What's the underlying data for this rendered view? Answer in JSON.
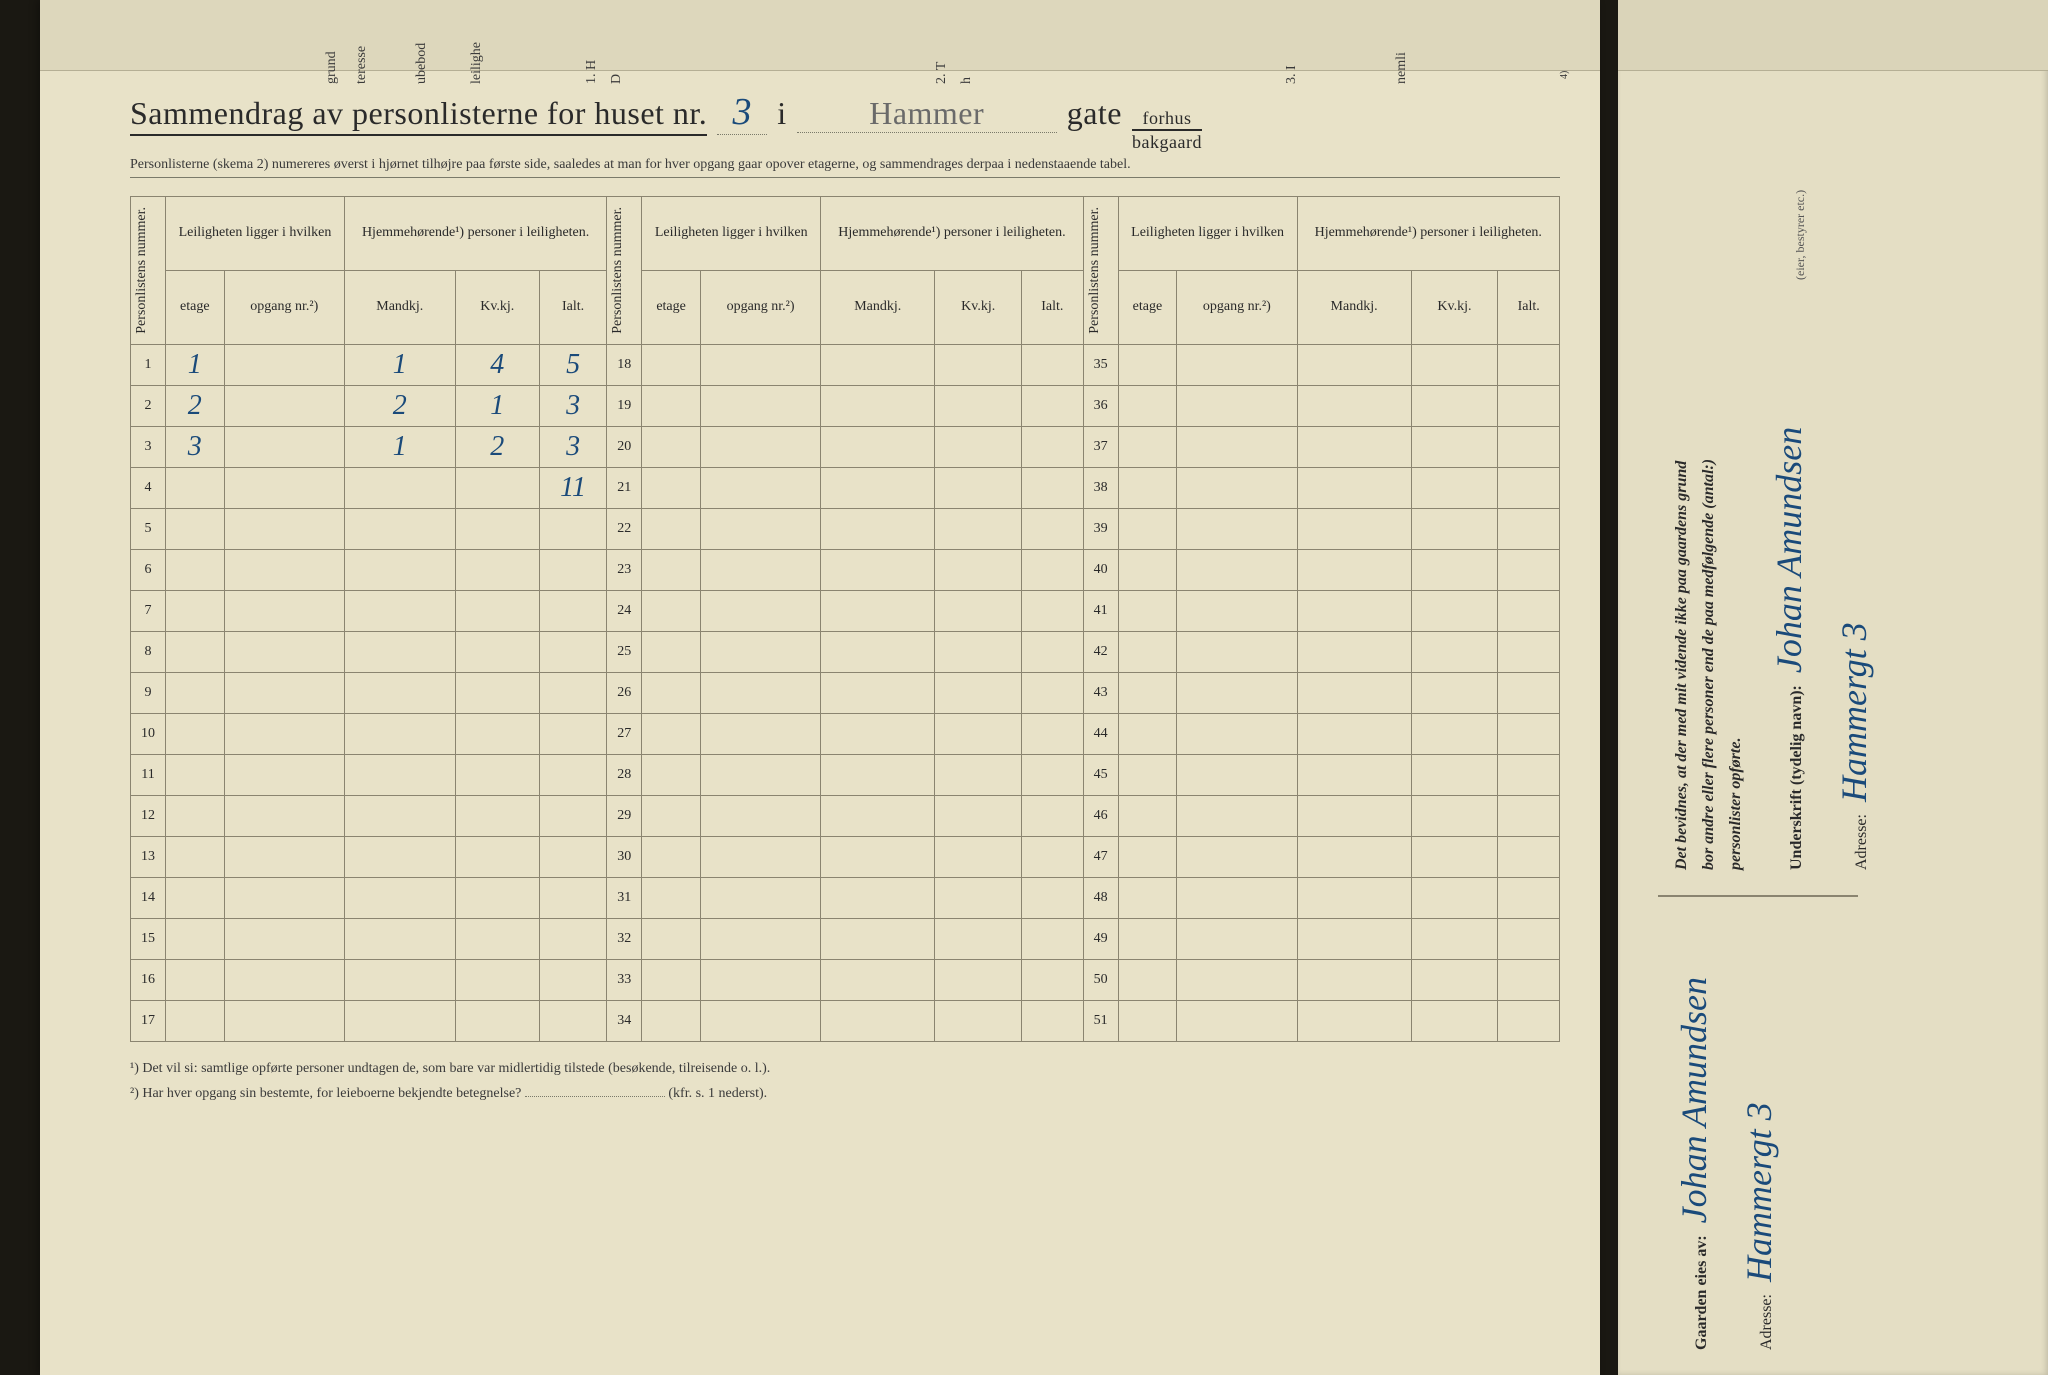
{
  "title": {
    "prefix": "Sammendrag av personlisterne for huset nr.",
    "house_nr": "3",
    "mid": "i",
    "street": "Hammer",
    "gate": "gate",
    "frac_top": "forhus",
    "frac_bot": "bakgaard"
  },
  "subtitle": "Personlisterne (skema 2) numereres øverst i hjørnet tilhøjre paa første side, saaledes at man for hver opgang gaar opover etagerne, og sammendrages derpaa i nedenstaaende tabel.",
  "headers": {
    "pl_num": "Personlistens nummer.",
    "leil": "Leiligheten ligger i hvilken",
    "hjem": "Hjemmehørende¹) personer i leiligheten.",
    "etage": "etage",
    "opgang": "opgang nr.²)",
    "mandkj": "Mandkj.",
    "kvkj": "Kv.kj.",
    "ialt": "Ialt."
  },
  "rows": [
    {
      "n": "1",
      "etage": "1",
      "opgang": "",
      "m": "1",
      "k": "4",
      "i": "5"
    },
    {
      "n": "2",
      "etage": "2",
      "opgang": "",
      "m": "2",
      "k": "1",
      "i": "3"
    },
    {
      "n": "3",
      "etage": "3",
      "opgang": "",
      "m": "1",
      "k": "2",
      "i": "3"
    },
    {
      "n": "4",
      "etage": "",
      "opgang": "",
      "m": "",
      "k": "",
      "i": "11"
    },
    {
      "n": "5"
    },
    {
      "n": "6"
    },
    {
      "n": "7"
    },
    {
      "n": "8"
    },
    {
      "n": "9"
    },
    {
      "n": "10"
    },
    {
      "n": "11"
    },
    {
      "n": "12"
    },
    {
      "n": "13"
    },
    {
      "n": "14"
    },
    {
      "n": "15"
    },
    {
      "n": "16"
    },
    {
      "n": "17"
    }
  ],
  "rows2_start": 18,
  "rows3_start": 35,
  "footnotes": {
    "f1": "¹) Det vil si: samtlige opførte personer undtagen de, som bare var midlertidig tilstede (besøkende, tilreisende o. l.).",
    "f2": "²) Har hver opgang sin bestemte, for leieboerne bekjendte betegnelse?",
    "f2_ref": "(kfr. s. 1 nederst)."
  },
  "top_strip": [
    "grund",
    "teresse",
    "ubebod",
    "leilighe",
    "1. H",
    "D",
    "2. T",
    "h",
    "3. I",
    "nemli",
    "4)"
  ],
  "sidebar": {
    "bevidnes": "Det bevidnes, at der med mit vidende ikke paa gaardens grund",
    "bor": "bor andre eller flere personer end de paa medfølgende (antal:)",
    "pl": "personlister opførte.",
    "underskrift_label": "Underskrift (tydelig navn):",
    "underskrift_value": "Johan Amundsen",
    "underskrift_note": "(eier, bestyrer etc.)",
    "adresse_label": "Adresse:",
    "adresse_value": "Hammergt 3",
    "eies_label": "Gaarden eies av:",
    "eies_value": "Johan Amundsen",
    "eies_adresse_label": "Adresse:",
    "eies_adresse_value": "Hammergt 3"
  }
}
